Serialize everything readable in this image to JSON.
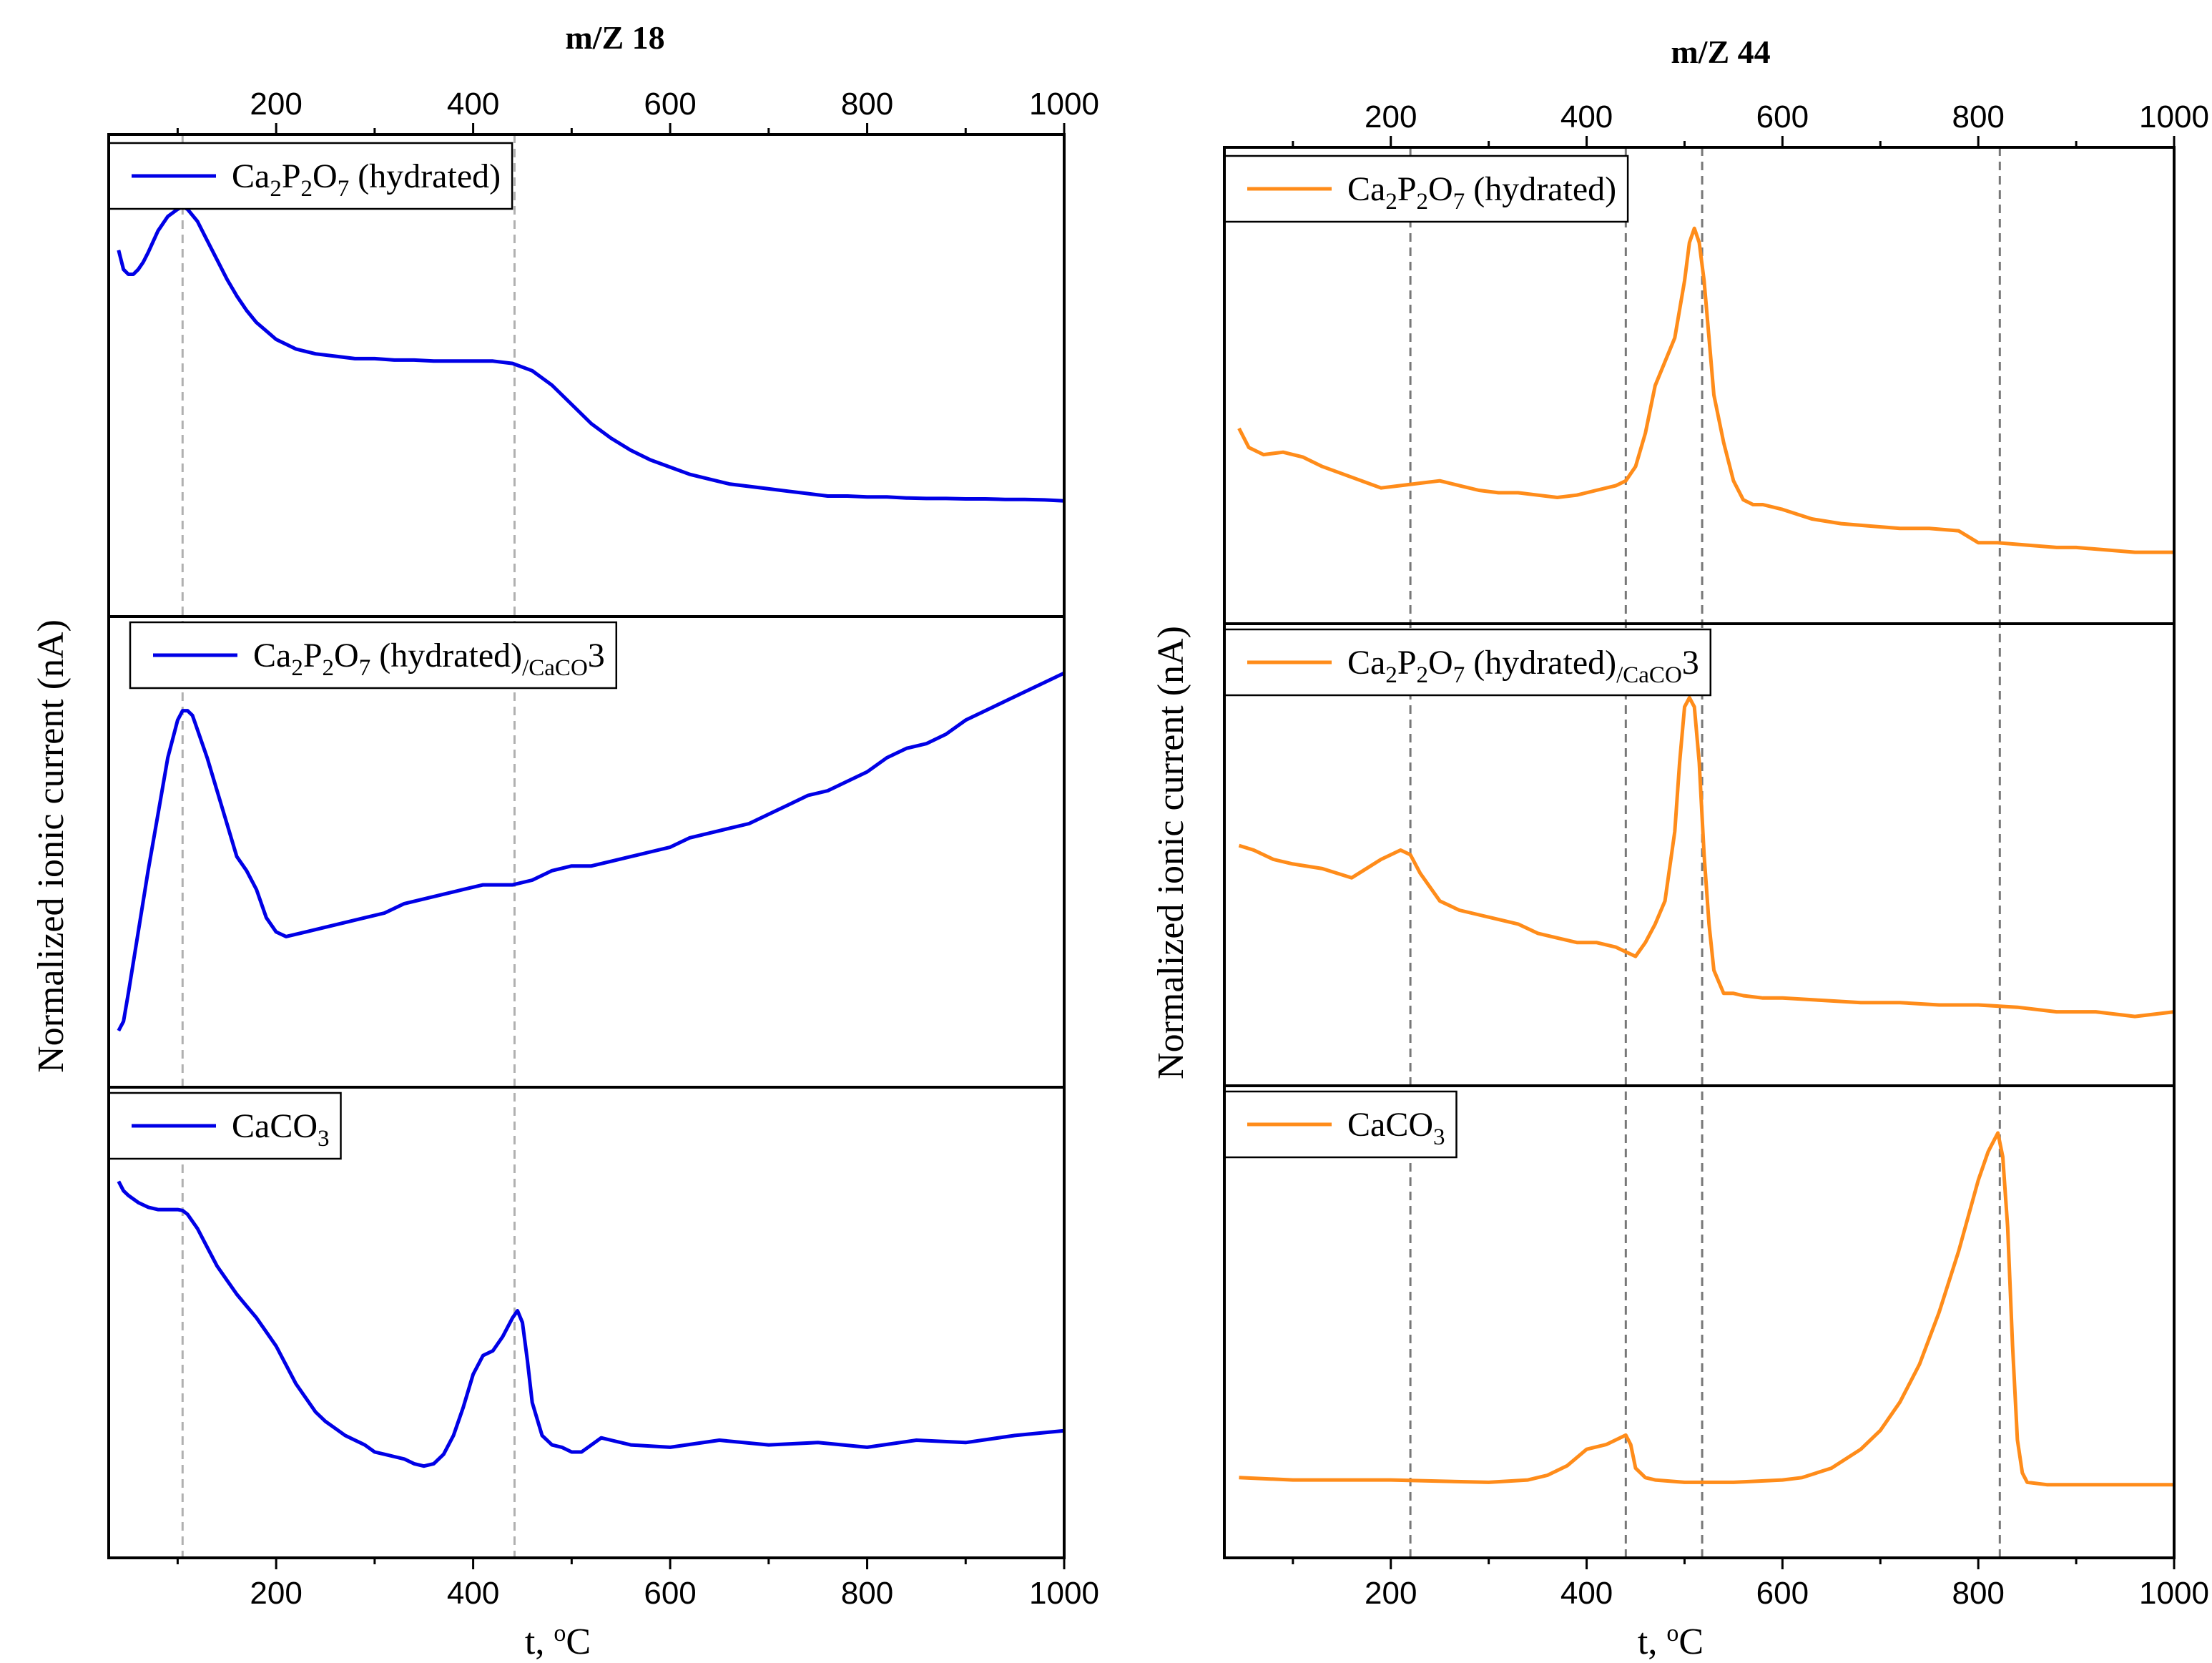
{
  "chart_data": [
    {
      "type": "line",
      "title": "m/Z 18",
      "xlabel": "t, °C",
      "ylabel": "Normalized ionic current (nA)",
      "xlim": [
        30,
        1000
      ],
      "ylim": [
        0,
        1
      ],
      "xticks": [
        200,
        400,
        600,
        800,
        1000
      ],
      "grid": false,
      "line_color": "#0000e6",
      "reference_lines_x": [
        105,
        442
      ],
      "panels": [
        {
          "legend": "Ca2P2O7 (hydrated)",
          "legend_parts": [
            "Ca",
            "2",
            "P",
            "2",
            "O",
            "7",
            " (hydrated)",
            ""
          ],
          "x": [
            40,
            45,
            50,
            55,
            60,
            65,
            70,
            80,
            90,
            100,
            105,
            110,
            120,
            130,
            140,
            150,
            160,
            170,
            180,
            200,
            220,
            240,
            260,
            280,
            300,
            320,
            340,
            360,
            380,
            400,
            420,
            440,
            460,
            480,
            500,
            520,
            540,
            560,
            580,
            600,
            620,
            640,
            660,
            680,
            700,
            720,
            740,
            760,
            780,
            800,
            820,
            840,
            860,
            880,
            900,
            920,
            940,
            960,
            980,
            1000
          ],
          "y": [
            0.76,
            0.72,
            0.71,
            0.71,
            0.72,
            0.735,
            0.755,
            0.8,
            0.83,
            0.845,
            0.85,
            0.845,
            0.82,
            0.78,
            0.74,
            0.7,
            0.665,
            0.635,
            0.61,
            0.575,
            0.555,
            0.545,
            0.54,
            0.535,
            0.535,
            0.532,
            0.532,
            0.53,
            0.53,
            0.53,
            0.53,
            0.525,
            0.51,
            0.48,
            0.44,
            0.4,
            0.37,
            0.345,
            0.325,
            0.31,
            0.295,
            0.285,
            0.275,
            0.27,
            0.265,
            0.26,
            0.255,
            0.25,
            0.25,
            0.248,
            0.248,
            0.246,
            0.245,
            0.245,
            0.244,
            0.244,
            0.243,
            0.243,
            0.242,
            0.24
          ]
        },
        {
          "legend": "Ca2P2O7 (hydrated)/CaCO3",
          "legend_parts": [
            "Ca",
            "2",
            "P",
            "2",
            "O",
            "7",
            " (hydrated)",
            "/CaCO",
            "3"
          ],
          "x": [
            40,
            45,
            50,
            60,
            70,
            80,
            90,
            100,
            105,
            110,
            115,
            120,
            130,
            140,
            150,
            160,
            170,
            180,
            190,
            200,
            210,
            230,
            250,
            270,
            290,
            310,
            330,
            350,
            370,
            390,
            410,
            440,
            460,
            480,
            500,
            520,
            540,
            560,
            580,
            600,
            620,
            640,
            660,
            680,
            700,
            720,
            740,
            760,
            780,
            800,
            820,
            840,
            860,
            880,
            900,
            920,
            940,
            960,
            980,
            1000
          ],
          "y": [
            0.12,
            0.14,
            0.2,
            0.33,
            0.46,
            0.58,
            0.7,
            0.78,
            0.8,
            0.8,
            0.79,
            0.76,
            0.7,
            0.63,
            0.56,
            0.49,
            0.46,
            0.42,
            0.36,
            0.33,
            0.32,
            0.33,
            0.34,
            0.35,
            0.36,
            0.37,
            0.39,
            0.4,
            0.41,
            0.42,
            0.43,
            0.43,
            0.44,
            0.46,
            0.47,
            0.47,
            0.48,
            0.49,
            0.5,
            0.51,
            0.53,
            0.54,
            0.55,
            0.56,
            0.58,
            0.6,
            0.62,
            0.63,
            0.65,
            0.67,
            0.7,
            0.72,
            0.73,
            0.75,
            0.78,
            0.8,
            0.82,
            0.84,
            0.86,
            0.88
          ]
        },
        {
          "legend": "CaCO3",
          "legend_parts": [
            "CaCO",
            "3"
          ],
          "x": [
            40,
            45,
            50,
            60,
            70,
            80,
            90,
            100,
            105,
            110,
            120,
            130,
            140,
            150,
            160,
            170,
            180,
            190,
            200,
            210,
            220,
            230,
            240,
            250,
            260,
            270,
            280,
            290,
            300,
            310,
            320,
            330,
            340,
            350,
            360,
            370,
            380,
            390,
            400,
            410,
            420,
            430,
            440,
            445,
            450,
            455,
            460,
            470,
            480,
            490,
            500,
            510,
            520,
            530,
            540,
            560,
            600,
            650,
            700,
            750,
            800,
            850,
            900,
            950,
            1000
          ],
          "y": [
            0.8,
            0.78,
            0.77,
            0.755,
            0.745,
            0.74,
            0.74,
            0.74,
            0.738,
            0.73,
            0.7,
            0.66,
            0.62,
            0.59,
            0.56,
            0.535,
            0.51,
            0.48,
            0.45,
            0.41,
            0.37,
            0.34,
            0.31,
            0.29,
            0.275,
            0.26,
            0.25,
            0.24,
            0.225,
            0.22,
            0.215,
            0.21,
            0.2,
            0.195,
            0.2,
            0.22,
            0.26,
            0.32,
            0.39,
            0.43,
            0.44,
            0.47,
            0.51,
            0.525,
            0.5,
            0.42,
            0.33,
            0.26,
            0.24,
            0.235,
            0.225,
            0.225,
            0.24,
            0.255,
            0.25,
            0.24,
            0.235,
            0.25,
            0.24,
            0.245,
            0.235,
            0.25,
            0.245,
            0.26,
            0.27
          ]
        }
      ]
    },
    {
      "type": "line",
      "title": "m/Z 44",
      "xlabel": "t, °C",
      "ylabel": "Normalized ionic current (nA)",
      "xlim": [
        30,
        1000
      ],
      "ylim": [
        0,
        1
      ],
      "xticks": [
        200,
        400,
        600,
        800,
        1000
      ],
      "grid": false,
      "line_color": "#ff8c1a",
      "reference_lines_x": [
        220,
        440,
        518,
        822
      ],
      "panels": [
        {
          "legend": "Ca2P2O7 (hydrated)",
          "legend_parts": [
            "Ca",
            "2",
            "P",
            "2",
            "O",
            "7",
            " (hydrated)",
            ""
          ],
          "x": [
            45,
            55,
            70,
            90,
            110,
            130,
            150,
            170,
            190,
            210,
            230,
            250,
            270,
            290,
            310,
            330,
            350,
            370,
            390,
            410,
            430,
            440,
            450,
            460,
            470,
            480,
            490,
            500,
            505,
            510,
            515,
            520,
            525,
            530,
            540,
            550,
            560,
            570,
            580,
            600,
            630,
            660,
            690,
            720,
            750,
            780,
            800,
            820,
            850,
            880,
            900,
            930,
            960,
            980,
            1000
          ],
          "y": [
            0.41,
            0.37,
            0.355,
            0.36,
            0.35,
            0.33,
            0.315,
            0.3,
            0.285,
            0.29,
            0.295,
            0.3,
            0.29,
            0.28,
            0.275,
            0.275,
            0.27,
            0.265,
            0.27,
            0.28,
            0.29,
            0.3,
            0.33,
            0.4,
            0.5,
            0.55,
            0.6,
            0.72,
            0.8,
            0.83,
            0.8,
            0.72,
            0.6,
            0.48,
            0.38,
            0.3,
            0.26,
            0.25,
            0.25,
            0.24,
            0.22,
            0.21,
            0.205,
            0.2,
            0.2,
            0.195,
            0.17,
            0.17,
            0.165,
            0.16,
            0.16,
            0.155,
            0.15,
            0.15,
            0.15
          ]
        },
        {
          "legend": "Ca2P2O7 (hydrated)/CaCO3",
          "legend_parts": [
            "Ca",
            "2",
            "P",
            "2",
            "O",
            "7",
            " (hydrated)",
            "/CaCO",
            "3"
          ],
          "x": [
            45,
            60,
            80,
            100,
            130,
            160,
            190,
            210,
            220,
            230,
            250,
            270,
            290,
            310,
            330,
            350,
            370,
            390,
            410,
            430,
            440,
            450,
            460,
            470,
            480,
            490,
            495,
            500,
            505,
            510,
            515,
            520,
            525,
            530,
            540,
            550,
            560,
            580,
            600,
            640,
            680,
            720,
            760,
            800,
            840,
            880,
            920,
            960,
            1000
          ],
          "y": [
            0.52,
            0.51,
            0.49,
            0.48,
            0.47,
            0.45,
            0.49,
            0.51,
            0.5,
            0.46,
            0.4,
            0.38,
            0.37,
            0.36,
            0.35,
            0.33,
            0.32,
            0.31,
            0.31,
            0.3,
            0.29,
            0.28,
            0.31,
            0.35,
            0.4,
            0.55,
            0.7,
            0.82,
            0.84,
            0.82,
            0.7,
            0.5,
            0.35,
            0.25,
            0.2,
            0.2,
            0.195,
            0.19,
            0.19,
            0.185,
            0.18,
            0.18,
            0.175,
            0.175,
            0.17,
            0.16,
            0.16,
            0.15,
            0.16
          ]
        },
        {
          "legend": "CaCO3",
          "legend_parts": [
            "CaCO",
            "3"
          ],
          "x": [
            45,
            100,
            200,
            300,
            340,
            360,
            380,
            400,
            420,
            430,
            440,
            445,
            450,
            460,
            470,
            500,
            550,
            600,
            620,
            650,
            680,
            700,
            720,
            740,
            760,
            780,
            800,
            810,
            815,
            820,
            825,
            830,
            835,
            840,
            845,
            850,
            870,
            900,
            950,
            1000
          ],
          "y": [
            0.17,
            0.165,
            0.165,
            0.16,
            0.165,
            0.175,
            0.195,
            0.23,
            0.24,
            0.25,
            0.26,
            0.24,
            0.19,
            0.17,
            0.165,
            0.16,
            0.16,
            0.165,
            0.17,
            0.19,
            0.23,
            0.27,
            0.33,
            0.41,
            0.52,
            0.65,
            0.8,
            0.86,
            0.88,
            0.9,
            0.85,
            0.7,
            0.45,
            0.25,
            0.18,
            0.16,
            0.155,
            0.155,
            0.155,
            0.155
          ]
        }
      ]
    }
  ]
}
